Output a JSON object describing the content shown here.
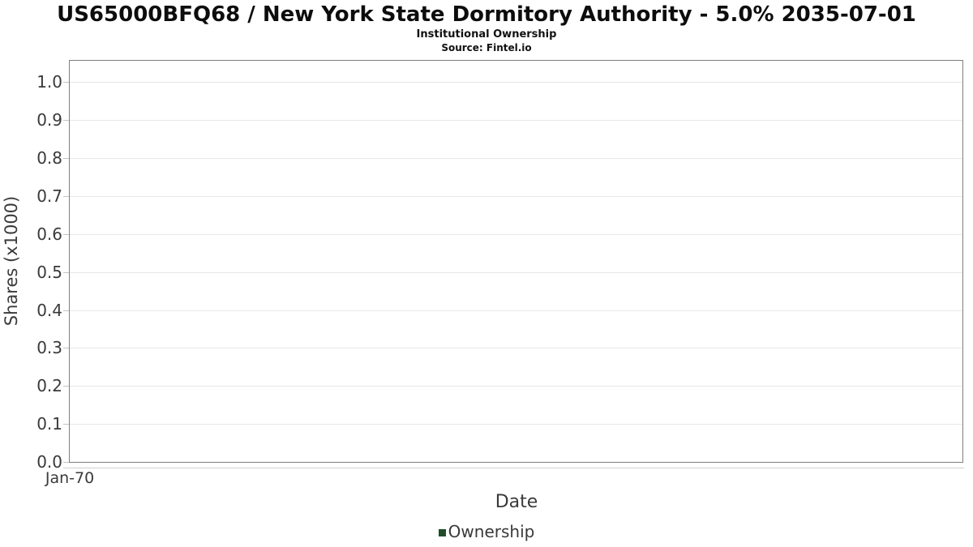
{
  "header": {
    "title": "US65000BFQ68 / New York State Dormitory Authority - 5.0% 2035-07-01",
    "subtitle": "Institutional Ownership",
    "source": "Source: Fintel.io"
  },
  "chart_data": {
    "type": "line",
    "title": "US65000BFQ68 / New York State Dormitory Authority - 5.0% 2035-07-01",
    "subtitle": "Institutional Ownership",
    "source": "Source: Fintel.io",
    "xlabel": "Date",
    "ylabel": "Shares (x1000)",
    "x_ticks": [
      "Jan-70"
    ],
    "y_ticks": [
      "0.0",
      "0.1",
      "0.2",
      "0.3",
      "0.4",
      "0.5",
      "0.6",
      "0.7",
      "0.8",
      "0.9",
      "1.0"
    ],
    "ylim": [
      0,
      1.056
    ],
    "grid": "horizontal",
    "legend": {
      "position": "bottom-center",
      "entries": [
        {
          "label": "Ownership",
          "color": "#1f4e2a"
        }
      ]
    },
    "series": [
      {
        "name": "Ownership",
        "color": "#1f4e2a",
        "x": [],
        "values": []
      }
    ]
  },
  "colors": {
    "accent_green": "#1f4e2a",
    "plot_border": "#7f7f7f",
    "gridline": "#e7e7e7",
    "tick_text": "#3a3a3a",
    "title_text": "#0d0d0d"
  }
}
